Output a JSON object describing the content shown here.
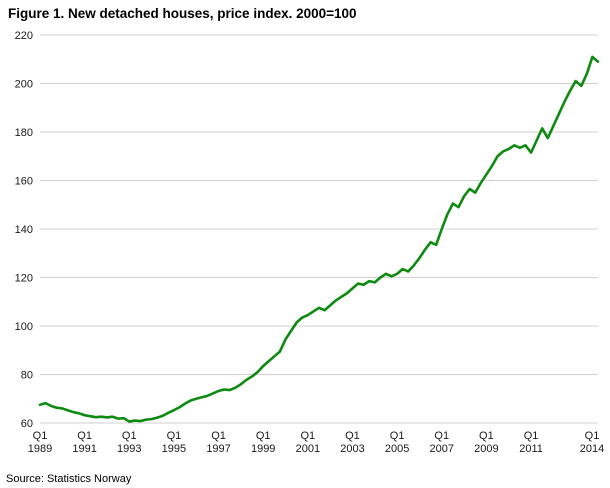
{
  "title": "Figure 1. New detached houses, price index. 2000=100",
  "source": "Source: Statistics Norway",
  "chart_data": {
    "type": "line",
    "series_name": "New detached houses, price index (2000=100)",
    "frequency": "quarterly",
    "x_start": "Q1 1989",
    "x_end": "Q1 2014",
    "values": [
      67.5,
      68.2,
      67.0,
      66.3,
      66.0,
      65.2,
      64.5,
      64.0,
      63.2,
      62.8,
      62.4,
      62.6,
      62.3,
      62.6,
      61.8,
      62.0,
      60.6,
      61.0,
      60.8,
      61.4,
      61.6,
      62.2,
      63.0,
      64.2,
      65.3,
      66.5,
      68.0,
      69.3,
      70.0,
      70.6,
      71.2,
      72.2,
      73.2,
      73.8,
      73.6,
      74.5,
      76.0,
      77.8,
      79.2,
      81.0,
      83.5,
      85.5,
      87.5,
      89.5,
      94.5,
      98.0,
      101.5,
      103.5,
      104.5,
      106.0,
      107.5,
      106.5,
      108.5,
      110.5,
      112.0,
      113.5,
      115.5,
      117.5,
      117.0,
      118.5,
      118.0,
      120.0,
      121.5,
      120.5,
      121.5,
      123.5,
      122.5,
      125.0,
      128.0,
      131.5,
      134.5,
      133.5,
      140.0,
      146.0,
      150.5,
      149.0,
      153.5,
      156.5,
      155.0,
      159.0,
      162.5,
      166.0,
      170.0,
      172.0,
      173.0,
      174.5,
      173.5,
      174.5,
      171.5,
      176.5,
      181.5,
      177.5,
      182.5,
      187.5,
      192.5,
      197.0,
      201.0,
      199.0,
      204.0,
      211.0,
      209.0
    ],
    "ylim": [
      60,
      220
    ],
    "y_ticks": [
      60,
      80,
      100,
      120,
      140,
      160,
      180,
      200,
      220
    ],
    "x_tick_quarter_label": "Q1",
    "x_tick_positions": [
      0,
      8,
      16,
      24,
      32,
      40,
      48,
      56,
      64,
      72,
      80,
      88,
      100
    ],
    "x_tick_years": [
      "1989",
      "1991",
      "1993",
      "1995",
      "1997",
      "1999",
      "2001",
      "2003",
      "2005",
      "2007",
      "2009",
      "2011",
      "2014"
    ],
    "line_color": "#0e8a11",
    "grid_color": "#d0d0d0",
    "grid": "horizontal",
    "legend": "none"
  }
}
